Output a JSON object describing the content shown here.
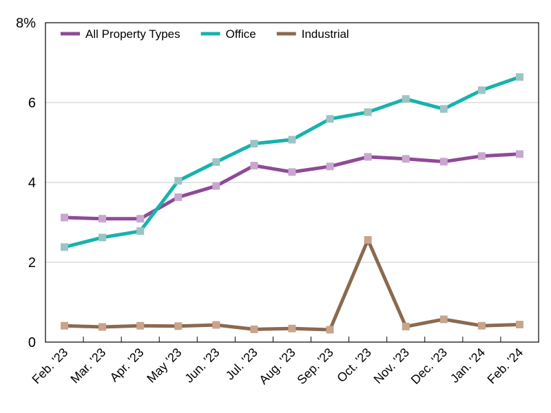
{
  "chart_data": {
    "type": "line",
    "title": "",
    "xlabel": "",
    "ylabel": "",
    "ylim": [
      0,
      8
    ],
    "yticks": [
      0,
      2,
      4,
      6,
      8
    ],
    "ytick_labels": [
      "0",
      "2",
      "4",
      "6",
      "8%"
    ],
    "grid": "horizontal",
    "legend_position": "top-left",
    "categories": [
      "Feb. '23",
      "Mar. '23",
      "Apr. '23",
      "May '23",
      "Jun. '23",
      "Jul. '23",
      "Aug. '23",
      "Sep. '23",
      "Oct. '23",
      "Nov. '23",
      "Dec. '23",
      "Jan. '24",
      "Feb. '24"
    ],
    "series": [
      {
        "name": "All Property Types",
        "color": "#8e4a97",
        "marker_color": "#c9a6cf",
        "values": [
          3.12,
          3.09,
          3.09,
          3.63,
          3.91,
          4.42,
          4.26,
          4.4,
          4.64,
          4.59,
          4.52,
          4.66,
          4.71
        ]
      },
      {
        "name": "Office",
        "color": "#17b2ae",
        "marker_color": "#9cc4c4",
        "values": [
          2.38,
          2.62,
          2.78,
          4.04,
          4.51,
          4.97,
          5.07,
          5.59,
          5.76,
          6.09,
          5.84,
          6.31,
          6.64
        ]
      },
      {
        "name": "Industrial",
        "color": "#8a6a4f",
        "marker_color": "#c8a48c",
        "values": [
          0.41,
          0.38,
          0.41,
          0.4,
          0.43,
          0.32,
          0.34,
          0.31,
          2.56,
          0.39,
          0.57,
          0.41,
          0.44
        ]
      }
    ]
  }
}
